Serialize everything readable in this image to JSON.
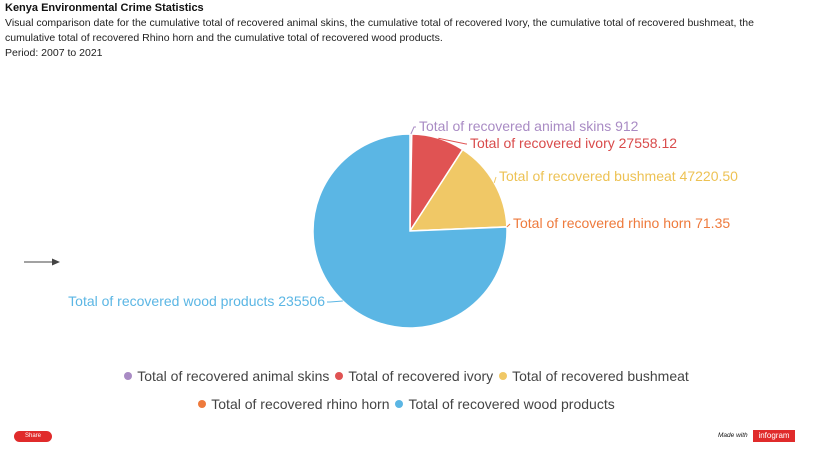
{
  "header": {
    "title": "Kenya Environmental Crime Statistics",
    "description": "Visual comparison date for the cumulative total of recovered animal skins, the cumulative total of recovered Ivory, the cumulative total of recovered bushmeat, the cumulative total of recovered Rhino horn and the cumulative total of recovered wood products.",
    "period": "Period: 2007 to 2021"
  },
  "chart_data": {
    "type": "pie",
    "categories": [
      "Total of recovered animal skins",
      "Total of recovered ivory",
      "Total of recovered bushmeat",
      "Total of recovered rhino horn",
      "Total of recovered wood products"
    ],
    "values": [
      912,
      27558.12,
      47220.5,
      71.35,
      235506
    ],
    "value_labels": [
      "912",
      "27558.12",
      "47220.50",
      "71.35",
      "235506"
    ],
    "colors": [
      "#a98bc4",
      "#e05353",
      "#f0c866",
      "#ee7a3c",
      "#5bb6e4"
    ],
    "label_colors": [
      "#a98bc4",
      "#d94b4b",
      "#edc254",
      "#ee7a3c",
      "#5bb6e4"
    ],
    "legend_position": "bottom",
    "legend_rows": [
      [
        "Total of recovered animal skins",
        "Total of recovered ivory",
        "Total of recovered bushmeat"
      ],
      [
        "Total of recovered rhino horn",
        "Total of recovered wood products"
      ]
    ]
  },
  "footer": {
    "share_label": "Share",
    "made_with": "Made with",
    "brand": "infogram"
  }
}
